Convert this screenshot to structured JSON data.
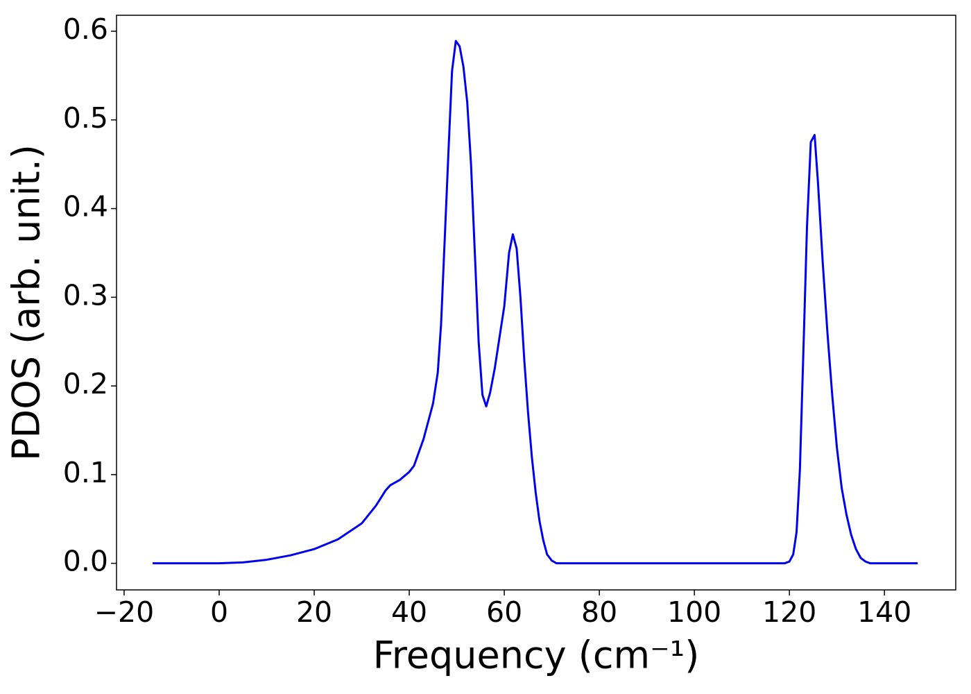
{
  "chart_data": {
    "type": "line",
    "xlabel": "Frequency (cm⁻¹)",
    "ylabel": "PDOS (arb. unit.)",
    "x": [
      -14,
      0,
      5,
      10,
      15,
      20,
      25,
      30,
      33,
      35,
      36,
      38,
      40,
      41,
      42,
      43,
      44,
      45,
      46,
      46.7,
      47.5,
      48.3,
      49,
      49.8,
      50.6,
      51.4,
      52.2,
      53,
      53.8,
      54.6,
      55.4,
      56.2,
      57,
      58,
      59,
      60,
      61,
      61.8,
      62.6,
      63.4,
      64.2,
      65,
      65.8,
      66.6,
      67.4,
      68.2,
      69,
      70,
      71,
      119,
      120,
      120.8,
      121.5,
      122.2,
      123,
      123.7,
      124.5,
      125.3,
      126,
      127,
      128,
      129,
      130,
      131,
      132,
      133,
      134,
      135,
      136,
      137,
      147
    ],
    "values": [
      0,
      0,
      0.001,
      0.004,
      0.009,
      0.016,
      0.027,
      0.045,
      0.065,
      0.082,
      0.088,
      0.094,
      0.103,
      0.11,
      0.125,
      0.14,
      0.16,
      0.18,
      0.215,
      0.27,
      0.37,
      0.47,
      0.555,
      0.589,
      0.583,
      0.56,
      0.52,
      0.45,
      0.35,
      0.25,
      0.19,
      0.177,
      0.192,
      0.22,
      0.255,
      0.29,
      0.35,
      0.371,
      0.355,
      0.3,
      0.23,
      0.17,
      0.12,
      0.08,
      0.048,
      0.026,
      0.01,
      0.003,
      0,
      0,
      0.002,
      0.01,
      0.035,
      0.105,
      0.25,
      0.38,
      0.475,
      0.483,
      0.43,
      0.34,
      0.26,
      0.19,
      0.13,
      0.085,
      0.055,
      0.032,
      0.016,
      0.006,
      0.002,
      0,
      0
    ],
    "color": "#0000ee",
    "xlim": [
      -21.6,
      155
    ],
    "ylim": [
      -0.03,
      0.618
    ],
    "xticks": [
      {
        "value": -20,
        "label": "−20"
      },
      0,
      20,
      40,
      60,
      80,
      100,
      120,
      140
    ],
    "yticks": [
      {
        "value": 0,
        "label": "0.0"
      },
      0.1,
      0.2,
      0.3,
      0.4,
      0.5,
      0.6
    ],
    "grid": false
  }
}
